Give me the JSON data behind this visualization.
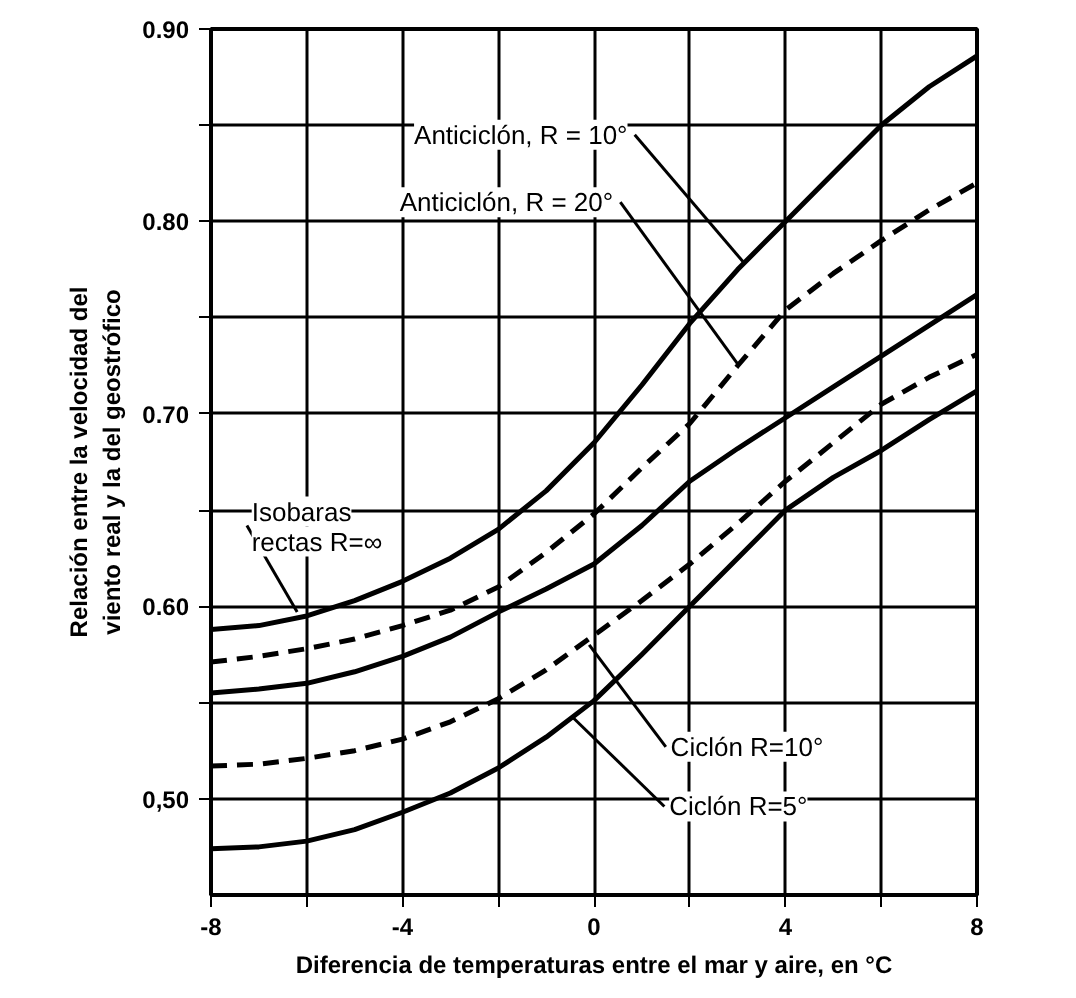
{
  "chart_data": {
    "type": "line",
    "xlabel": "Diferencia de temperaturas entre el mar y aire, en °C",
    "ylabel": "Relación entre la velocidad del\nviento real y la del geostrófico",
    "x": [
      -8,
      -7,
      -6,
      -5,
      -4,
      -3,
      -2,
      -1,
      0,
      1,
      2,
      3,
      4,
      5,
      6,
      7,
      8
    ],
    "xlim": [
      -8,
      8
    ],
    "ylim": [
      0.45,
      0.9
    ],
    "xticks": [
      -8,
      {
        "value": -6,
        "label": null
      },
      -4,
      {
        "value": -2,
        "label": null
      },
      0,
      {
        "value": 2,
        "label": null
      },
      4,
      {
        "value": 6,
        "label": null
      },
      8
    ],
    "yticks": [
      {
        "value": 0.5,
        "label": "0,50"
      },
      {
        "value": 0.55,
        "label": null
      },
      {
        "value": 0.6,
        "label": "0.60"
      },
      {
        "value": 0.65,
        "label": null
      },
      {
        "value": 0.7,
        "label": "0.70"
      },
      {
        "value": 0.75,
        "label": null
      },
      {
        "value": 0.8,
        "label": "0.80"
      },
      {
        "value": 0.85,
        "label": null
      },
      {
        "value": 0.9,
        "label": "0.90"
      }
    ],
    "grid": true,
    "series": [
      {
        "color": "#000000",
        "line_style": "solid",
        "values": [
          0.588,
          0.59,
          0.595,
          0.603,
          0.613,
          0.625,
          0.64,
          0.66,
          0.685,
          0.715,
          0.747,
          0.775,
          0.8,
          0.825,
          0.85,
          0.87,
          0.886
        ]
      },
      {
        "color": "#000000",
        "line_style": "dashed",
        "values": [
          0.571,
          0.574,
          0.578,
          0.583,
          0.59,
          0.598,
          0.61,
          0.628,
          0.648,
          0.672,
          0.695,
          0.725,
          0.754,
          0.773,
          0.79,
          0.806,
          0.82
        ]
      },
      {
        "color": "#000000",
        "line_style": "solid",
        "values": [
          0.555,
          0.557,
          0.56,
          0.566,
          0.574,
          0.584,
          0.597,
          0.609,
          0.622,
          0.642,
          0.665,
          0.682,
          0.698,
          0.714,
          0.73,
          0.746,
          0.762
        ]
      },
      {
        "color": "#000000",
        "line_style": "dashed",
        "values": [
          0.517,
          0.518,
          0.521,
          0.525,
          0.531,
          0.54,
          0.552,
          0.567,
          0.585,
          0.603,
          0.622,
          0.643,
          0.665,
          0.685,
          0.705,
          0.719,
          0.731
        ]
      },
      {
        "color": "#000000",
        "line_style": "solid",
        "values": [
          0.474,
          0.475,
          0.478,
          0.484,
          0.493,
          0.503,
          0.516,
          0.532,
          0.551,
          0.575,
          0.6,
          0.625,
          0.65,
          0.667,
          0.681,
          0.697,
          0.712
        ]
      }
    ],
    "annotations": [
      {
        "text": "Anticiclón, R = 10°",
        "x": 3.15,
        "y": 0.778
      },
      {
        "text": "Anticiclón, R = 20°",
        "x": 3.0,
        "y": 0.726
      },
      {
        "text": "Isobaras\nrectas R=∞",
        "x": -6.2,
        "y": 0.597
      },
      {
        "text": "Ciclón R=10°",
        "x": -0.1,
        "y": 0.58
      },
      {
        "text": "Ciclón R=5°",
        "x": -0.43,
        "y": 0.542
      }
    ]
  }
}
